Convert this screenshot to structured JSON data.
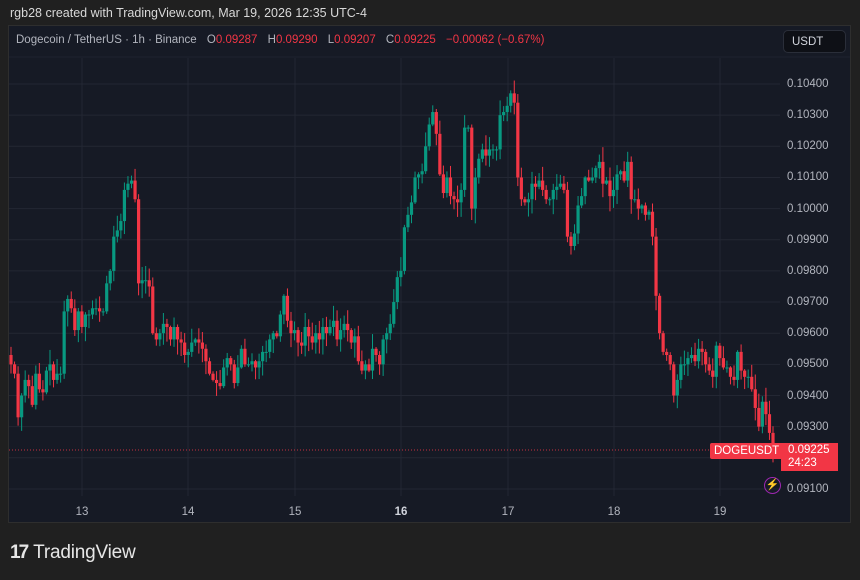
{
  "credit": "rgb28 created with TradingView.com, Mar 19, 2026 12:35 UTC-4",
  "legend": {
    "symbol": "Dogecoin / TetherUS · 1h · Binance",
    "o_label": "O",
    "o": "0.09287",
    "h_label": "H",
    "h": "0.09290",
    "l_label": "L",
    "l": "0.09207",
    "c_label": "C",
    "c": "0.09225",
    "change": "−0.00062 (−0.67%)"
  },
  "currency_button": "USDT",
  "price_tag": {
    "symbol": "DOGEUSDT",
    "price": "0.09225",
    "countdown": "24:23"
  },
  "logo": {
    "mark": "17",
    "text": "TradingView"
  },
  "colors": {
    "up": "#089981",
    "down": "#f23645",
    "background": "#161a25",
    "grid": "#232733"
  },
  "chart_data": {
    "type": "candlestick",
    "title": "Dogecoin / TetherUS · 1h · Binance",
    "xlabel": "",
    "ylabel": "USDT",
    "x_ticks": [
      "13",
      "14",
      "15",
      "16",
      "17",
      "18",
      "19"
    ],
    "y_ticks": [
      "0.10400",
      "0.10300",
      "0.10200",
      "0.10100",
      "0.10000",
      "0.09900",
      "0.09800",
      "0.09700",
      "0.09600",
      "0.09500",
      "0.09400",
      "0.09300",
      "0.09100"
    ],
    "ylim": [
      0.0904,
      0.1051
    ],
    "grid": true,
    "last_price": 0.09225,
    "closes": [
      0.095,
      0.0947,
      0.0933,
      0.094,
      0.0945,
      0.0943,
      0.0937,
      0.0947,
      0.0942,
      0.0941,
      0.0948,
      0.095,
      0.0945,
      0.0947,
      0.0947,
      0.0967,
      0.0971,
      0.0968,
      0.0961,
      0.0967,
      0.0962,
      0.0966,
      0.0966,
      0.0968,
      0.0968,
      0.0967,
      0.0967,
      0.0976,
      0.098,
      0.0991,
      0.0993,
      0.0996,
      0.1006,
      0.1008,
      0.1009,
      0.1003,
      0.0976,
      0.0977,
      0.0977,
      0.0975,
      0.096,
      0.0958,
      0.096,
      0.0963,
      0.0962,
      0.0958,
      0.0962,
      0.0958,
      0.0957,
      0.0953,
      0.0954,
      0.0957,
      0.0958,
      0.0957,
      0.0955,
      0.0951,
      0.0947,
      0.0945,
      0.0944,
      0.0943,
      0.0949,
      0.0952,
      0.095,
      0.0944,
      0.0949,
      0.0955,
      0.095,
      0.095,
      0.0951,
      0.0949,
      0.0951,
      0.0954,
      0.0954,
      0.0958,
      0.096,
      0.0959,
      0.0966,
      0.0972,
      0.0964,
      0.096,
      0.0961,
      0.0957,
      0.0956,
      0.0962,
      0.0959,
      0.0957,
      0.096,
      0.0958,
      0.0962,
      0.096,
      0.0962,
      0.0964,
      0.0958,
      0.0961,
      0.0963,
      0.0961,
      0.0957,
      0.0959,
      0.0951,
      0.0948,
      0.095,
      0.0948,
      0.0955,
      0.0953,
      0.095,
      0.0958,
      0.096,
      0.0963,
      0.097,
      0.0978,
      0.098,
      0.0994,
      0.0998,
      0.1002,
      0.101,
      0.1011,
      0.1012,
      0.102,
      0.1027,
      0.1031,
      0.1024,
      0.1011,
      0.1005,
      0.101,
      0.1004,
      0.1003,
      0.1002,
      0.1006,
      0.1026,
      0.1026,
      0.1,
      0.101,
      0.1016,
      0.1019,
      0.1017,
      0.1019,
      0.1019,
      0.1019,
      0.103,
      0.1031,
      0.1033,
      0.1037,
      0.1034,
      0.101,
      0.1003,
      0.1002,
      0.1003,
      0.1008,
      0.1007,
      0.1009,
      0.1006,
      0.1003,
      0.1003,
      0.1006,
      0.1007,
      0.1008,
      0.1006,
      0.0991,
      0.0988,
      0.0992,
      0.1001,
      0.1004,
      0.101,
      0.1009,
      0.101,
      0.1013,
      0.1015,
      0.1008,
      0.1009,
      0.1004,
      0.1006,
      0.1011,
      0.1012,
      0.1009,
      0.1015,
      0.1003,
      0.1003,
      0.1,
      0.1001,
      0.0998,
      0.0999,
      0.0991,
      0.0972,
      0.096,
      0.0954,
      0.0953,
      0.095,
      0.094,
      0.0945,
      0.095,
      0.095,
      0.0952,
      0.0953,
      0.0951,
      0.0955,
      0.0954,
      0.095,
      0.0948,
      0.0946,
      0.0956,
      0.0952,
      0.0949,
      0.0949,
      0.0946,
      0.0945,
      0.0954,
      0.0948,
      0.0946,
      0.0946,
      0.0942,
      0.0936,
      0.093,
      0.0938,
      0.0934,
      0.0928,
      0.09225
    ]
  }
}
